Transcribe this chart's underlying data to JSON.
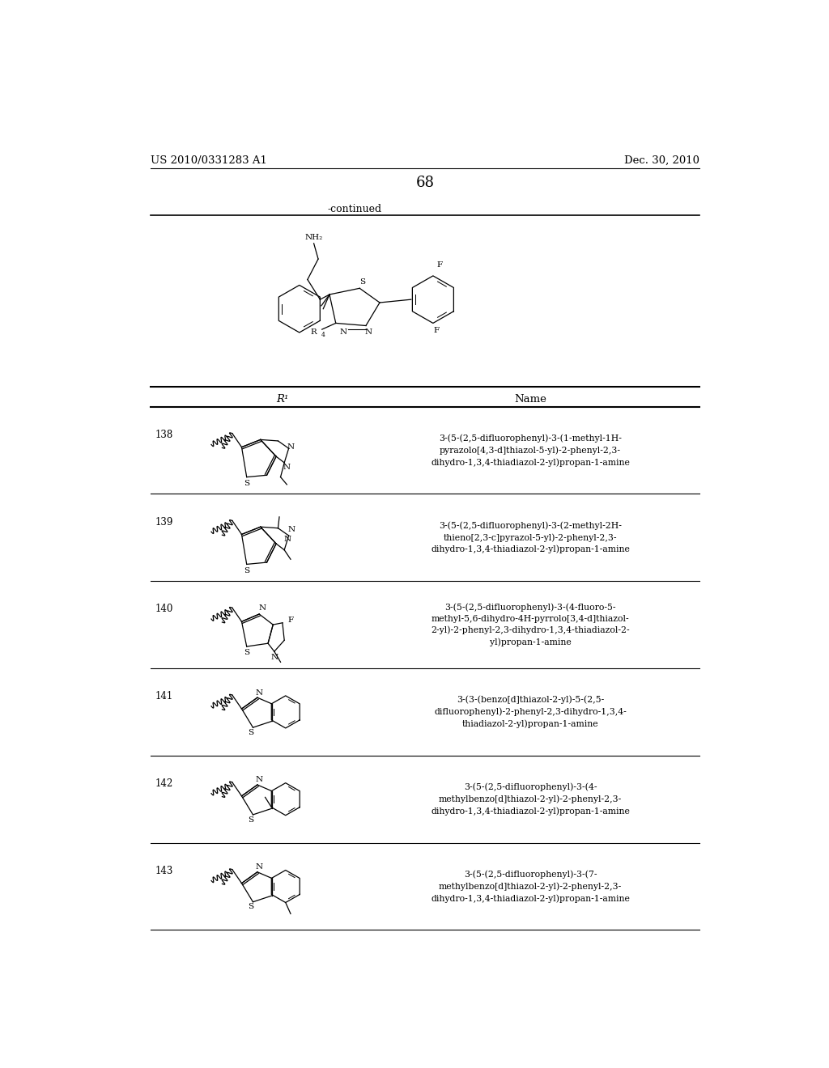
{
  "background_color": "#ffffff",
  "page_number": "68",
  "header_left": "US 2010/0331283 A1",
  "header_right": "Dec. 30, 2010",
  "continued_label": "-continued",
  "table_header_col1": "R¹",
  "table_header_col2": "Name",
  "rows": [
    {
      "number": "138",
      "name": "3-(5-(2,5-difluorophenyl)-3-(1-methyl-1H-\npyrazolo[4,3-d]thiazol-5-yl)-2-phenyl-2,3-\ndihydro-1,3,4-thiadiazol-2-yl)propan-1-amine"
    },
    {
      "number": "139",
      "name": "3-(5-(2,5-difluorophenyl)-3-(2-methyl-2H-\nthieno[2,3-c]pyrazol-5-yl)-2-phenyl-2,3-\ndihydro-1,3,4-thiadiazol-2-yl)propan-1-amine"
    },
    {
      "number": "140",
      "name": "3-(5-(2,5-difluorophenyl)-3-(4-fluoro-5-\nmethyl-5,6-dihydro-4H-pyrrolo[3,4-d]thiazol-\n2-yl)-2-phenyl-2,3-dihydro-1,3,4-thiadiazol-2-\nyl)propan-1-amine"
    },
    {
      "number": "141",
      "name": "3-(3-(benzo[d]thiazol-2-yl)-5-(2,5-\ndifluorophenyl)-2-phenyl-2,3-dihydro-1,3,4-\nthiadiazol-2-yl)propan-1-amine"
    },
    {
      "number": "142",
      "name": "3-(5-(2,5-difluorophenyl)-3-(4-\nmethylbenzo[d]thiazol-2-yl)-2-phenyl-2,3-\ndihydro-1,3,4-thiadiazol-2-yl)propan-1-amine"
    },
    {
      "number": "143",
      "name": "3-(5-(2,5-difluorophenyl)-3-(7-\nmethylbenzo[d]thiazol-2-yl)-2-phenyl-2,3-\ndihydro-1,3,4-thiadiazol-2-yl)propan-1-amine"
    }
  ]
}
